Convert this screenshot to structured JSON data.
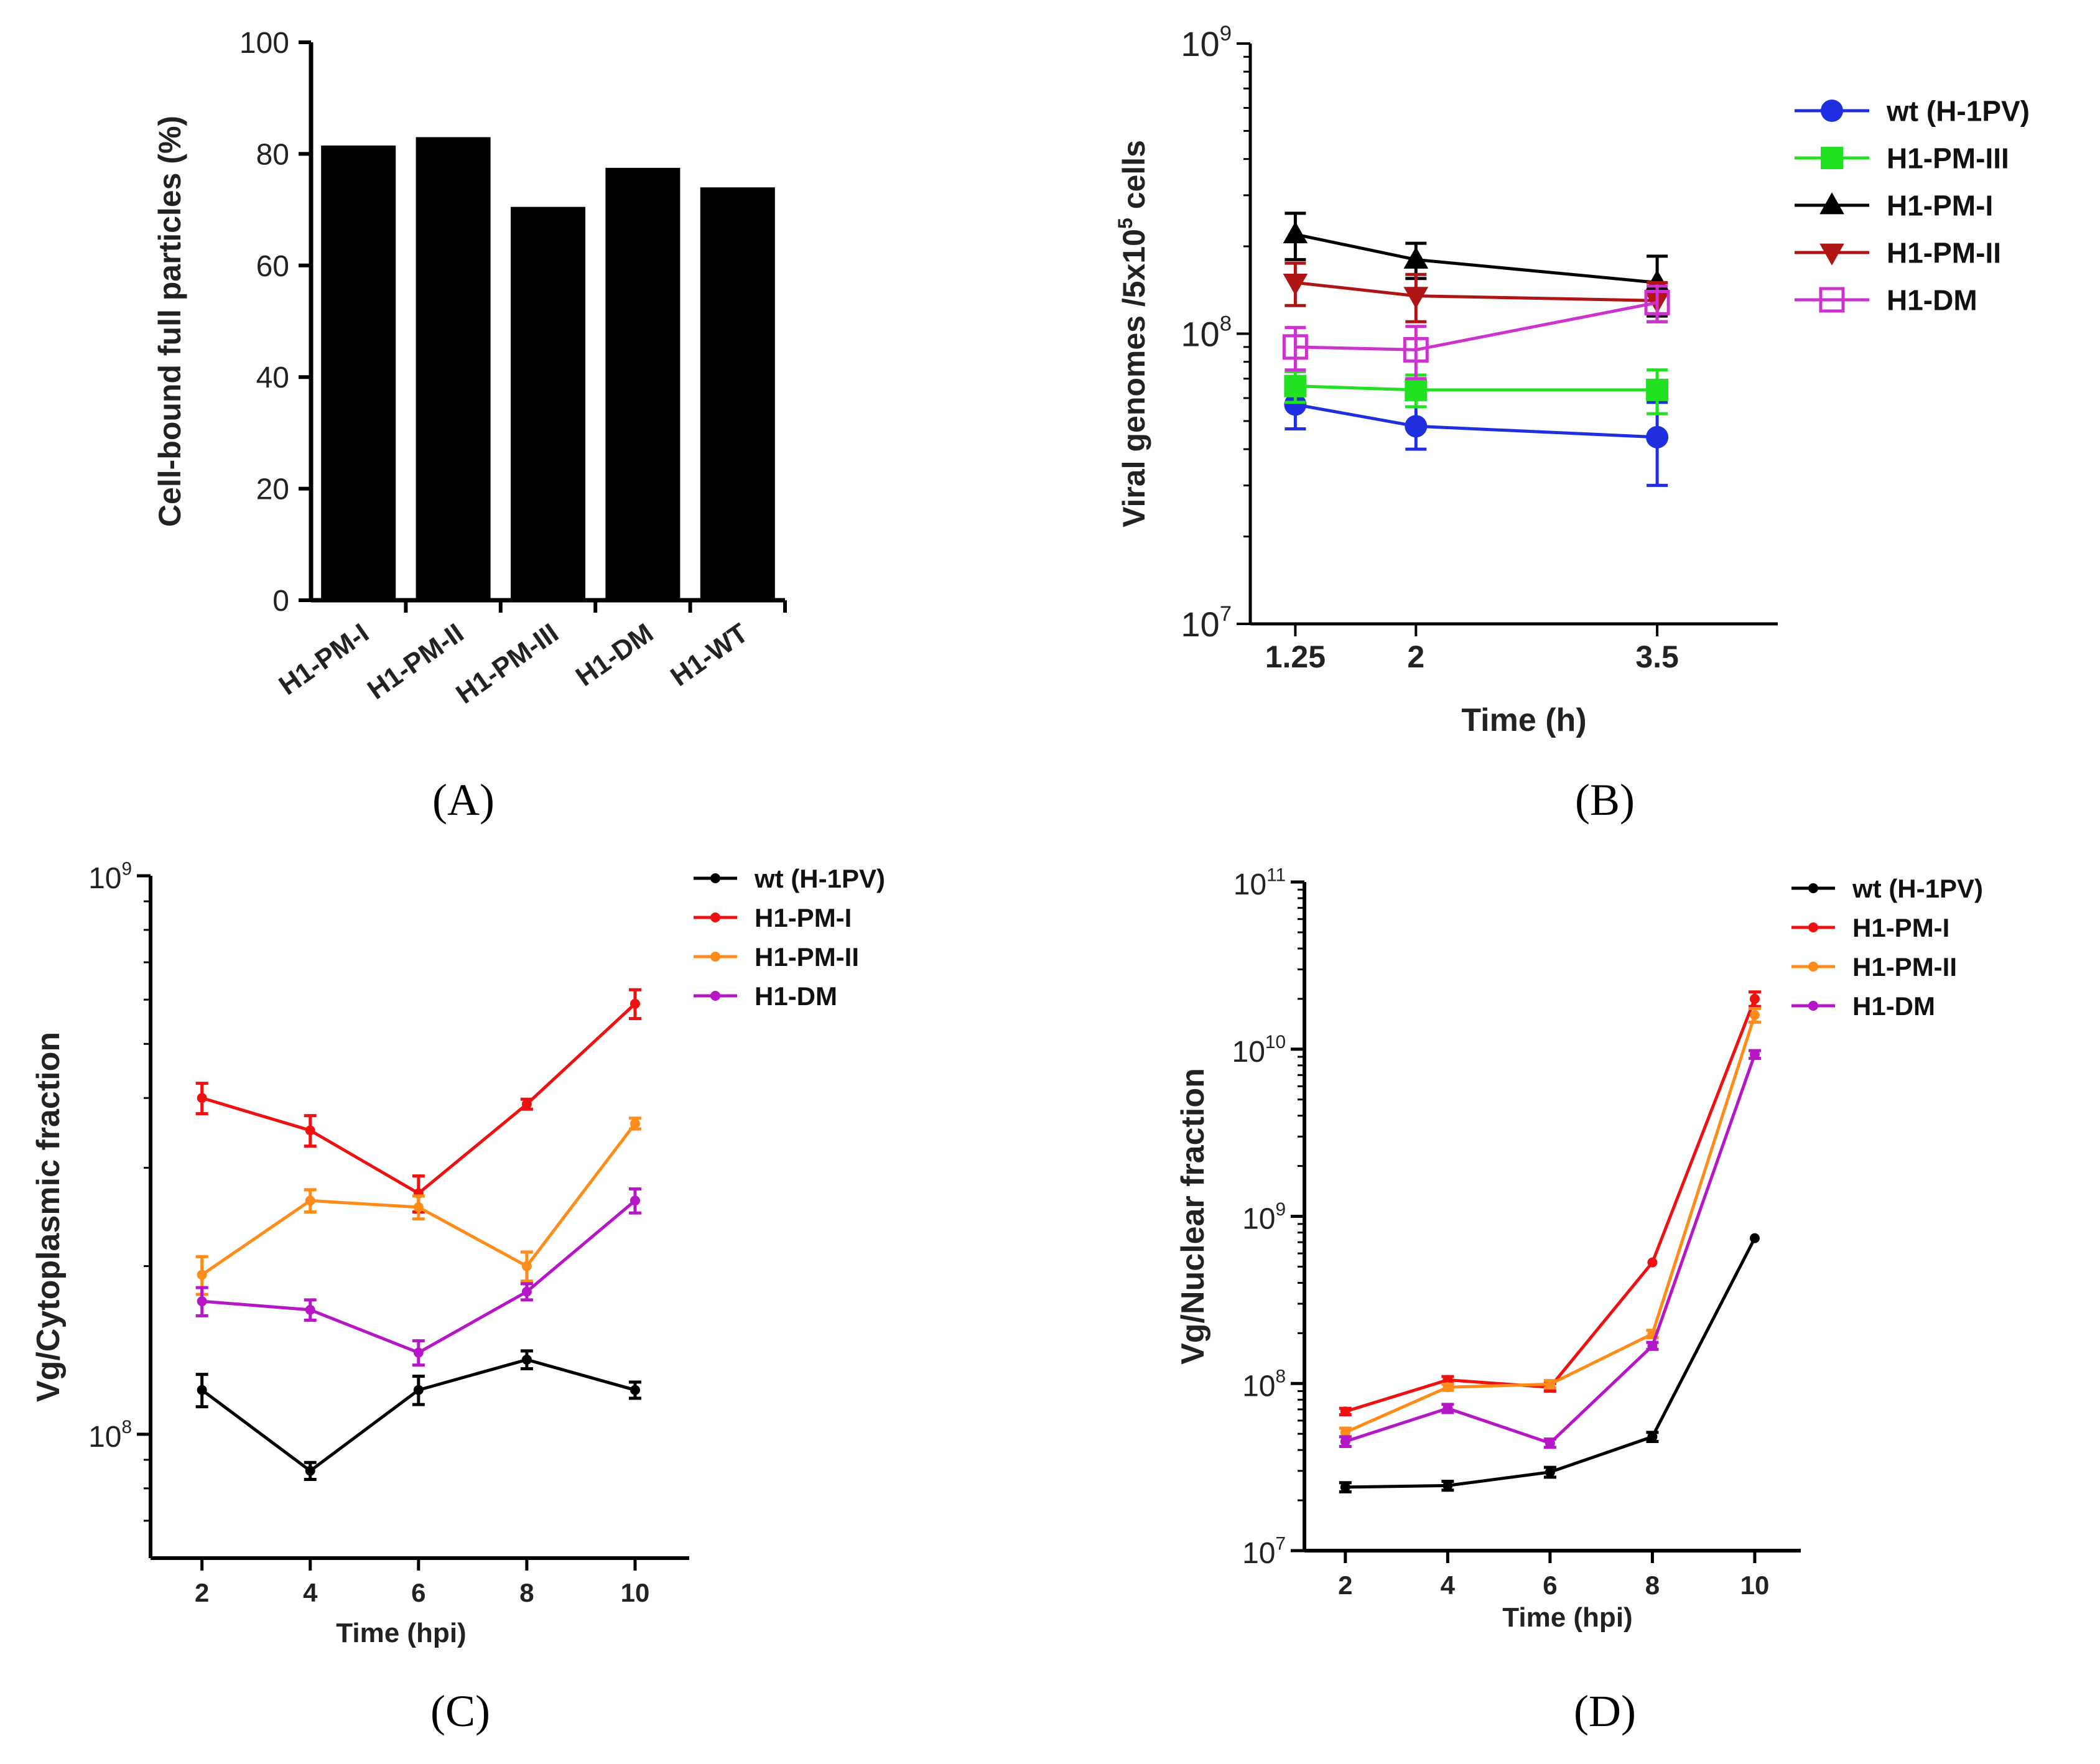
{
  "chart_data": [
    {
      "panel": "A",
      "type": "bar",
      "categories": [
        "H1-PM-I",
        "H1-PM-II",
        "H1-PM-III",
        "H1-DM",
        "H1-WT"
      ],
      "values": [
        81.5,
        83,
        70.5,
        77.5,
        74
      ],
      "title": "",
      "xlabel": "",
      "ylabel": "Cell-bound full particles (%)",
      "ylim": [
        0,
        100
      ],
      "yticks": [
        "0",
        "20",
        "40",
        "60",
        "80",
        "100"
      ],
      "panel_label": "(A)",
      "colors": {
        "bar": "#000000"
      }
    },
    {
      "panel": "B",
      "type": "line",
      "yscale": "log",
      "x": [
        1.25,
        2,
        3.5
      ],
      "xticks": [
        "1.25",
        "2",
        "3.5"
      ],
      "ylim": [
        10000000,
        1000000000
      ],
      "yticks": [
        {
          "base": "10",
          "exp": "7"
        },
        {
          "base": "10",
          "exp": "8"
        },
        {
          "base": "10",
          "exp": "9"
        }
      ],
      "xlabel": "Time (h)",
      "ylabel_main": "Viral genomes /5x10",
      "ylabel_sup": "5",
      "ylabel_end": " cells",
      "panel_label": "(B)",
      "series": [
        {
          "name": "wt (H-1PV)",
          "color": "#1f2fe0",
          "marker": "circle",
          "values": [
            57000000,
            48000000,
            44000000
          ],
          "err": [
            10000000,
            8000000,
            14000000
          ]
        },
        {
          "name": "H1-PM-III",
          "color": "#22e022",
          "marker": "square",
          "values": [
            66000000,
            64000000,
            64000000
          ],
          "err": [
            8000000,
            8000000,
            11000000
          ]
        },
        {
          "name": "H1-PM-I",
          "color": "#000000",
          "marker": "triangle-up",
          "values": [
            220000000,
            180000000,
            150000000
          ],
          "err": [
            40000000,
            25000000,
            35000000
          ]
        },
        {
          "name": "H1-PM-II",
          "color": "#b01515",
          "marker": "triangle-down",
          "values": [
            150000000,
            135000000,
            130000000
          ],
          "err": [
            25000000,
            25000000,
            20000000
          ]
        },
        {
          "name": "H1-DM",
          "color": "#cc33cc",
          "marker": "open-square",
          "values": [
            90000000,
            88000000,
            128000000
          ],
          "err": [
            15000000,
            18000000,
            18000000
          ]
        }
      ]
    },
    {
      "panel": "C",
      "type": "line",
      "yscale": "log",
      "x": [
        2,
        4,
        6,
        8,
        10
      ],
      "xticks": [
        "2",
        "4",
        "6",
        "8",
        "10"
      ],
      "ylim": [
        60000000,
        1000000000
      ],
      "yticks": [
        {
          "base": "10",
          "exp": "8"
        },
        {
          "base": "10",
          "exp": "9"
        }
      ],
      "xlabel": "Time (hpi)",
      "ylabel": "Vg/Cytoplasmic fraction",
      "panel_label": "(C)",
      "series": [
        {
          "name": "wt (H-1PV)",
          "color": "#000000",
          "values": [
            120000000,
            86000000,
            120000000,
            136000000,
            120000000
          ],
          "err": [
            8000000,
            3000000,
            7000000,
            5000000,
            4000000
          ]
        },
        {
          "name": "H1-PM-I",
          "color": "#ee1111",
          "values": [
            400000000,
            350000000,
            270000000,
            390000000,
            590000000
          ],
          "err": [
            25000000,
            22000000,
            20000000,
            8000000,
            35000000
          ]
        },
        {
          "name": "H1-PM-II",
          "color": "#ff8c1a",
          "values": [
            193000000,
            262000000,
            255000000,
            200000000,
            360000000
          ],
          "err": [
            15000000,
            12000000,
            12000000,
            12000000,
            8000000
          ]
        },
        {
          "name": "H1-DM",
          "color": "#b517c7",
          "values": [
            173000000,
            167000000,
            140000000,
            180000000,
            262000000
          ],
          "err": [
            10000000,
            7000000,
            7000000,
            6000000,
            13000000
          ]
        }
      ]
    },
    {
      "panel": "D",
      "type": "line",
      "yscale": "log",
      "x": [
        2,
        4,
        6,
        8,
        10
      ],
      "xticks": [
        "2",
        "4",
        "6",
        "8",
        "10"
      ],
      "ylim": [
        10000000,
        100000000000
      ],
      "yticks": [
        {
          "base": "10",
          "exp": "7"
        },
        {
          "base": "10",
          "exp": "8"
        },
        {
          "base": "10",
          "exp": "9"
        },
        {
          "base": "10",
          "exp": "10"
        },
        {
          "base": "10",
          "exp": "11"
        }
      ],
      "xlabel": "Time (hpi)",
      "ylabel": "Vg/Nuclear fraction",
      "panel_label": "(D)",
      "series": [
        {
          "name": "wt (H-1PV)",
          "color": "#000000",
          "values": [
            24000000,
            24500000,
            29500000,
            48000000,
            740000000
          ],
          "err": [
            1500000,
            1500000,
            2000000,
            3000000,
            0
          ]
        },
        {
          "name": "H1-PM-I",
          "color": "#ee1111",
          "values": [
            68000000,
            105000000,
            95000000,
            530000000,
            20000000000
          ],
          "err": [
            3000000,
            5000000,
            5000000,
            0,
            2000000000
          ]
        },
        {
          "name": "H1-PM-II",
          "color": "#ff8c1a",
          "values": [
            51000000,
            95000000,
            99000000,
            198000000,
            16000000000
          ],
          "err": [
            3000000,
            4000000,
            5000000,
            10000000,
            1500000000
          ]
        },
        {
          "name": "H1-DM",
          "color": "#b517c7",
          "values": [
            45000000,
            71000000,
            44000000,
            168000000,
            9300000000
          ],
          "err": [
            3000000,
            4000000,
            2500000,
            8000000,
            500000000
          ]
        }
      ]
    }
  ]
}
